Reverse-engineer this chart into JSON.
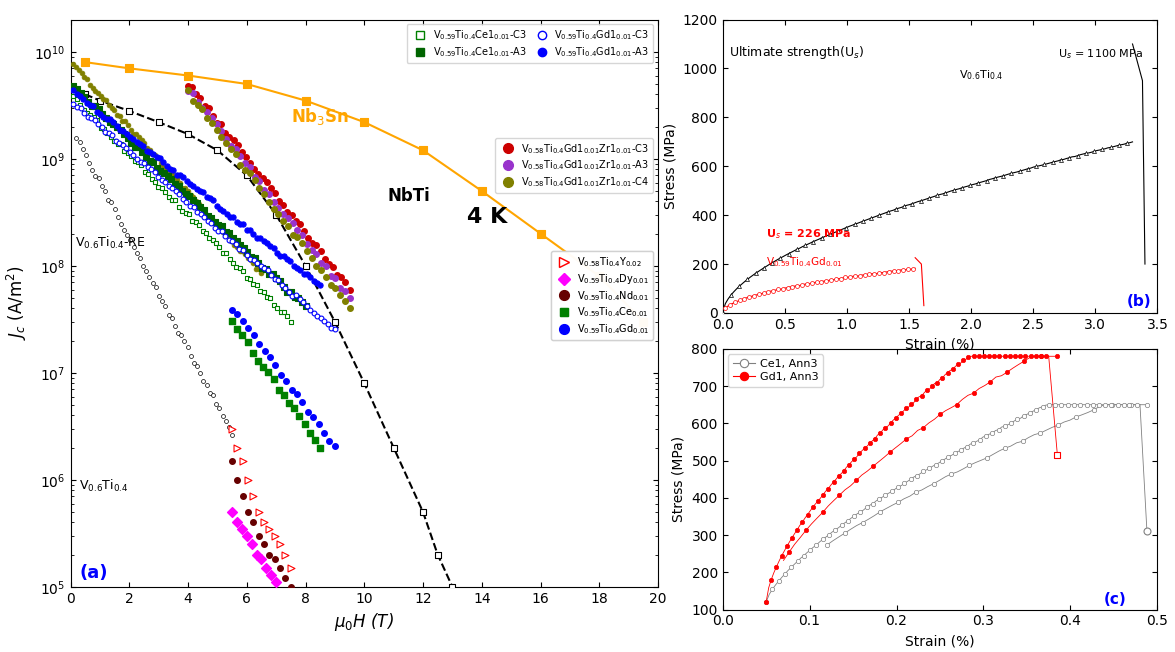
{
  "fig_width": 11.75,
  "fig_height": 6.52,
  "panel_a": {
    "xlabel": "$\\mu_0H$ (T)",
    "ylabel": "$J_c$ (A/m$^2$)",
    "xlim": [
      0,
      20
    ],
    "panel_label": "(a)"
  },
  "panel_b": {
    "xlabel": "Strain (%)",
    "ylabel": "Stress (MPa)",
    "xlim": [
      0.0,
      3.5
    ],
    "ylim": [
      0,
      1200
    ],
    "title": "Ultimate strength(U$_s$)",
    "label_Us1100": "U$_s$ = 1100 MPa",
    "label_V06Ti04": "V$_{0.6}$Ti$_{0.4}$",
    "label_Us226": "U$_s$ = 226 MPa",
    "label_V059Ti04Gd001": "V$_{0.59}$Ti$_{0.4}$Gd$_{0.01}$",
    "panel_label": "(b)"
  },
  "panel_c": {
    "xlabel": "Strain (%)",
    "ylabel": "Stress (MPa)",
    "xlim": [
      0.0,
      0.5
    ],
    "ylim": [
      100,
      800
    ],
    "label_Ce1Ann3": "Ce1, Ann3",
    "label_Gd1Ann3": "Gd1, Ann3",
    "panel_label": "(c)"
  }
}
